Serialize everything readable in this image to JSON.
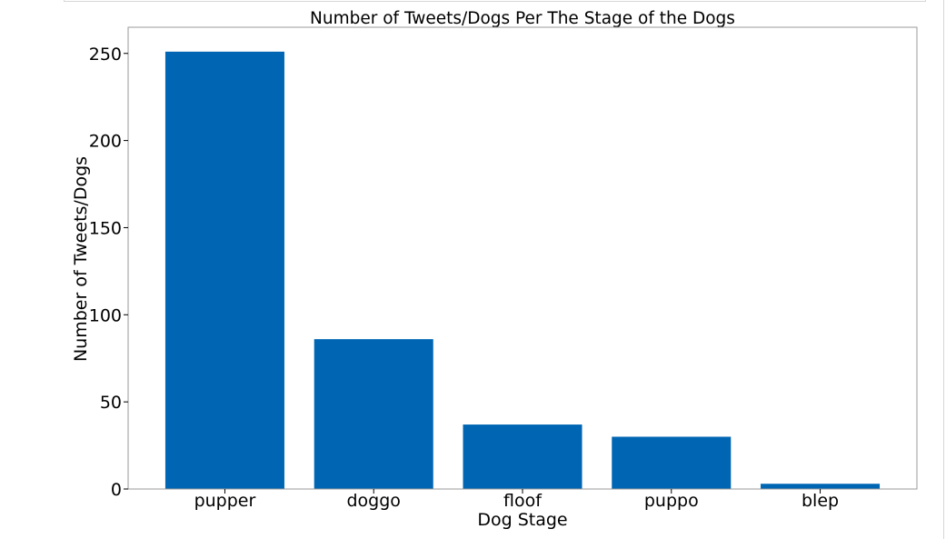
{
  "chart_data": {
    "type": "bar",
    "title": "Number of Tweets/Dogs Per The Stage of the Dogs",
    "xlabel": "Dog Stage",
    "ylabel": "Number of Tweets/Dogs",
    "categories": [
      "pupper",
      "doggo",
      "floof",
      "puppo",
      "blep"
    ],
    "values": [
      251,
      86,
      37,
      30,
      3
    ],
    "ylim": [
      0,
      265
    ],
    "yticks": [
      0,
      50,
      100,
      150,
      200,
      250
    ],
    "grid": false,
    "legend": "none",
    "bar_color": "#0066b3"
  }
}
